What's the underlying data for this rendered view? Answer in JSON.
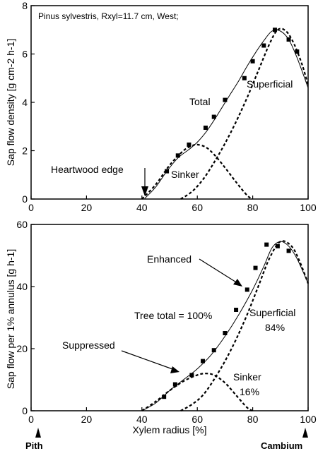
{
  "chart_data": [
    {
      "type": "line",
      "note_text": "Pinus sylvestris, Rxyl=11.7 cm, West;",
      "ylabel": "Sap flow density [g cm-2 h-1]",
      "xlim": [
        0,
        100
      ],
      "ylim": [
        0,
        8
      ],
      "xticks": [
        "0",
        "20",
        "40",
        "60",
        "80",
        "100"
      ],
      "yticks": [
        "0",
        "2",
        "4",
        "6",
        "8"
      ],
      "series": [
        {
          "name": "Total",
          "style": "solid",
          "x": [
            41,
            45,
            49,
            53,
            57,
            60,
            63,
            66,
            69,
            72,
            75,
            78,
            81,
            84,
            87,
            90,
            93,
            96,
            100
          ],
          "values": [
            0.02,
            0.5,
            1.15,
            1.7,
            2.05,
            2.35,
            2.75,
            3.25,
            3.8,
            4.35,
            4.9,
            5.5,
            6.05,
            6.55,
            6.95,
            6.95,
            6.6,
            5.85,
            4.6
          ]
        },
        {
          "name": "Sinker",
          "style": "dashed",
          "x": [
            40,
            45,
            50,
            55,
            58,
            60,
            63,
            66,
            70,
            74,
            78,
            80
          ],
          "values": [
            0.0,
            0.6,
            1.4,
            2.0,
            2.2,
            2.25,
            2.15,
            1.85,
            1.3,
            0.7,
            0.15,
            0.0
          ]
        },
        {
          "name": "Superficial",
          "style": "dashed",
          "x": [
            54,
            58,
            62,
            66,
            70,
            74,
            78,
            82,
            86,
            89,
            92,
            95,
            98,
            100
          ],
          "values": [
            0.0,
            0.3,
            0.8,
            1.5,
            2.3,
            3.2,
            4.2,
            5.3,
            6.4,
            7.0,
            6.95,
            6.4,
            5.5,
            4.7
          ]
        }
      ],
      "markers": {
        "x": [
          49,
          53,
          57,
          63,
          66,
          70,
          77,
          80,
          84,
          88,
          93,
          96
        ],
        "values": [
          1.15,
          1.8,
          2.25,
          2.95,
          3.4,
          4.1,
          5.0,
          5.7,
          6.35,
          7.0,
          6.6,
          6.1
        ]
      },
      "annotations": {
        "total": "Total",
        "superficial": "Superficial",
        "sinker": "Sinker",
        "heartwood": "Heartwood edge"
      },
      "heartwood_edge_x": 41
    },
    {
      "type": "line",
      "xlabel": "Xylem radius [%]",
      "ylabel": "Sap flow per 1% annulus [g h-1]",
      "xlim": [
        0,
        100
      ],
      "ylim": [
        0,
        60
      ],
      "xticks": [
        "0",
        "20",
        "40",
        "60",
        "80",
        "100"
      ],
      "yticks": [
        "0",
        "20",
        "40",
        "60"
      ],
      "series": [
        {
          "name": "Total",
          "style": "solid",
          "x": [
            40,
            45,
            50,
            55,
            60,
            65,
            70,
            75,
            80,
            84,
            87,
            90,
            93,
            96,
            100
          ],
          "values": [
            0.0,
            2.5,
            6.5,
            10.0,
            13.5,
            18.0,
            24.0,
            31.0,
            39.0,
            46.5,
            52.5,
            54.5,
            53.0,
            49.0,
            41.0
          ]
        },
        {
          "name": "Sinker",
          "style": "dashed",
          "x": [
            40,
            45,
            50,
            55,
            60,
            63,
            66,
            70,
            74,
            78,
            80
          ],
          "values": [
            0.0,
            3.0,
            6.5,
            9.5,
            11.5,
            12.0,
            11.5,
            9.0,
            5.0,
            1.0,
            0.0
          ]
        },
        {
          "name": "Superficial",
          "style": "dashed",
          "x": [
            54,
            58,
            62,
            66,
            70,
            74,
            78,
            82,
            86,
            90,
            94,
            97,
            100
          ],
          "values": [
            0.0,
            2.0,
            5.0,
            10.0,
            16.0,
            23.0,
            31.0,
            40.0,
            49.0,
            54.5,
            53.0,
            48.0,
            41.0
          ]
        }
      ],
      "markers": {
        "x": [
          48,
          52,
          58,
          62,
          66,
          70,
          74,
          78,
          81,
          85,
          89,
          93
        ],
        "values": [
          4.5,
          8.5,
          11.5,
          16.0,
          19.5,
          25.0,
          32.5,
          39.0,
          46.0,
          53.5,
          53.0,
          51.5
        ]
      },
      "annotations": {
        "enhanced": "Enhanced",
        "suppressed": "Suppressed",
        "tree_total": "Tree total = 100%",
        "superficial": "Superficial",
        "superficial_pct": "84%",
        "sinker": "Sinker",
        "sinker_pct": "16%",
        "pith": "Pith",
        "cambium": "Cambium"
      }
    }
  ]
}
